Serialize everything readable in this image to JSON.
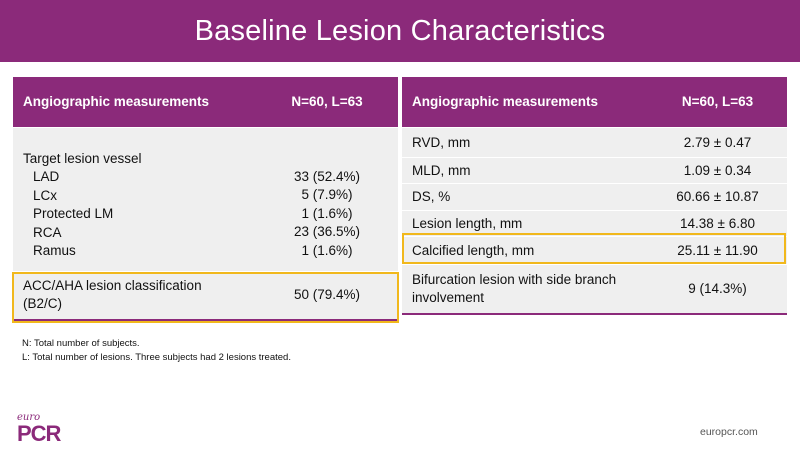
{
  "title": "Baseline Lesion Characteristics",
  "left_table": {
    "header_col1": "Angiographic measurements",
    "header_col2": "N=60, L=63",
    "vessel_label": "Target lesion vessel",
    "vessels": [
      {
        "label": "LAD",
        "value": "33 (52.4%)"
      },
      {
        "label": "LCx",
        "value": "5 (7.9%)"
      },
      {
        "label": "Protected LM",
        "value": "1 (1.6%)"
      },
      {
        "label": "RCA",
        "value": "23 (36.5%)"
      },
      {
        "label": "Ramus",
        "value": "1 (1.6%)"
      }
    ],
    "acc_label_line1": "ACC/AHA lesion classification",
    "acc_label_line2": "(B2/C)",
    "acc_value": "50 (79.4%)"
  },
  "right_table": {
    "header_col1": "Angiographic measurements",
    "header_col2": "N=60, L=63",
    "rows": [
      {
        "label": "RVD, mm",
        "value": "2.79 ± 0.47"
      },
      {
        "label": "MLD, mm",
        "value": "1.09 ± 0.34"
      },
      {
        "label": "DS, %",
        "value": "60.66 ± 10.87"
      },
      {
        "label": "Lesion length, mm",
        "value": "14.38 ± 6.80"
      },
      {
        "label": "Calcified length, mm",
        "value": "25.11 ± 11.90"
      }
    ],
    "bif_label_line1": "Bifurcation lesion with side branch",
    "bif_label_line2": "involvement",
    "bif_value": "9 (14.3%)"
  },
  "footnotes": {
    "n": "N: Total number of subjects.",
    "l": "L: Total number of lesions. Three subjects had 2 lesions treated."
  },
  "logo": {
    "small": "euro",
    "big": "PCR"
  },
  "site": "europcr.com",
  "colors": {
    "brand": "#8b2a7a",
    "highlight": "#f1b81c",
    "row_bg": "#efefef"
  }
}
